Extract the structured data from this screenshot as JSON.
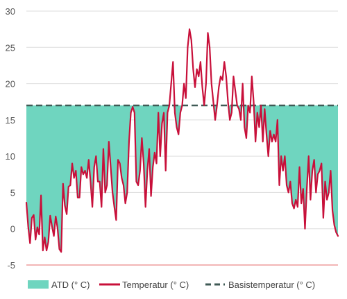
{
  "chart_data": {
    "type": "area",
    "ylim": [
      -5,
      30
    ],
    "yticks": [
      "30",
      "25",
      "20",
      "15",
      "10",
      "5",
      "0",
      "-5"
    ],
    "grid": "horizontal",
    "legend_position": "bottom",
    "colors": {
      "atd_fill": "#6fd5bf",
      "temperature": "#c8103a",
      "base": "#3f5a55",
      "grid": "#dddddd",
      "baseline": "#e66b6b"
    },
    "base_temperature": 17,
    "series": [
      {
        "name": "Temperatur (° C)",
        "values": [
          3.6,
          0.3,
          -2.0,
          1.5,
          1.9,
          -1.5,
          0.2,
          -0.8,
          4.6,
          -3.0,
          -1.2,
          -3.0,
          -1.8,
          1.8,
          0.3,
          -1.0,
          1.7,
          0.1,
          -2.8,
          -3.2,
          6.2,
          3.2,
          2.0,
          5.8,
          6.0,
          9.0,
          7.0,
          8.0,
          4.3,
          4.3,
          8.5,
          7.5,
          8.0,
          7.0,
          9.5,
          6.5,
          3.0,
          8.5,
          10.0,
          6.5,
          6.5,
          3.0,
          11.0,
          5.0,
          6.0,
          12.0,
          8.5,
          5.0,
          3.0,
          1.2,
          9.5,
          9.0,
          7.0,
          6.0,
          3.5,
          5.0,
          12.0,
          16.0,
          16.8,
          16.0,
          6.5,
          6.0,
          8.0,
          12.5,
          9.0,
          3.0,
          8.0,
          11.0,
          4.5,
          8.5,
          10.5,
          9.0,
          16.0,
          10.0,
          14.5,
          16.0,
          8.0,
          16.0,
          17.0,
          20.0,
          23.0,
          16.0,
          14.0,
          13.0,
          16.0,
          17.0,
          20.0,
          18.0,
          25.0,
          27.5,
          26.0,
          22.0,
          19.5,
          22.0,
          21.0,
          23.0,
          19.5,
          17.0,
          20.0,
          27.0,
          25.0,
          20.0,
          17.5,
          15.0,
          17.0,
          19.5,
          21.0,
          20.5,
          23.0,
          21.0,
          17.5,
          15.0,
          16.0,
          21.0,
          19.0,
          17.0,
          16.5,
          15.0,
          20.0,
          14.0,
          12.5,
          17.0,
          16.0,
          21.0,
          17.5,
          12.0,
          16.0,
          14.0,
          17.0,
          12.0,
          16.5,
          13.0,
          10.0,
          13.5,
          12.0,
          13.0,
          12.0,
          15.0,
          6.0,
          10.0,
          8.0,
          10.0,
          6.0,
          5.0,
          6.5,
          3.5,
          2.8,
          4.0,
          3.0,
          8.5,
          3.5,
          5.5,
          0.0,
          5.5,
          10.0,
          4.0,
          8.0,
          9.5,
          5.0,
          7.5,
          8.0,
          9.0,
          1.5,
          6.5,
          4.0,
          5.0,
          8.0,
          2.5,
          0.5,
          -0.5,
          -1.0
        ]
      },
      {
        "name": "ATD (° C)",
        "type": "area",
        "values": "17 − Temperatur where Temperatur < 17"
      },
      {
        "name": "Basistemperatur (° C)",
        "values": [
          17
        ]
      }
    ],
    "legend": [
      "ATD (° C)",
      "Temperatur (° C)",
      "Basistemperatur (° C)"
    ]
  }
}
